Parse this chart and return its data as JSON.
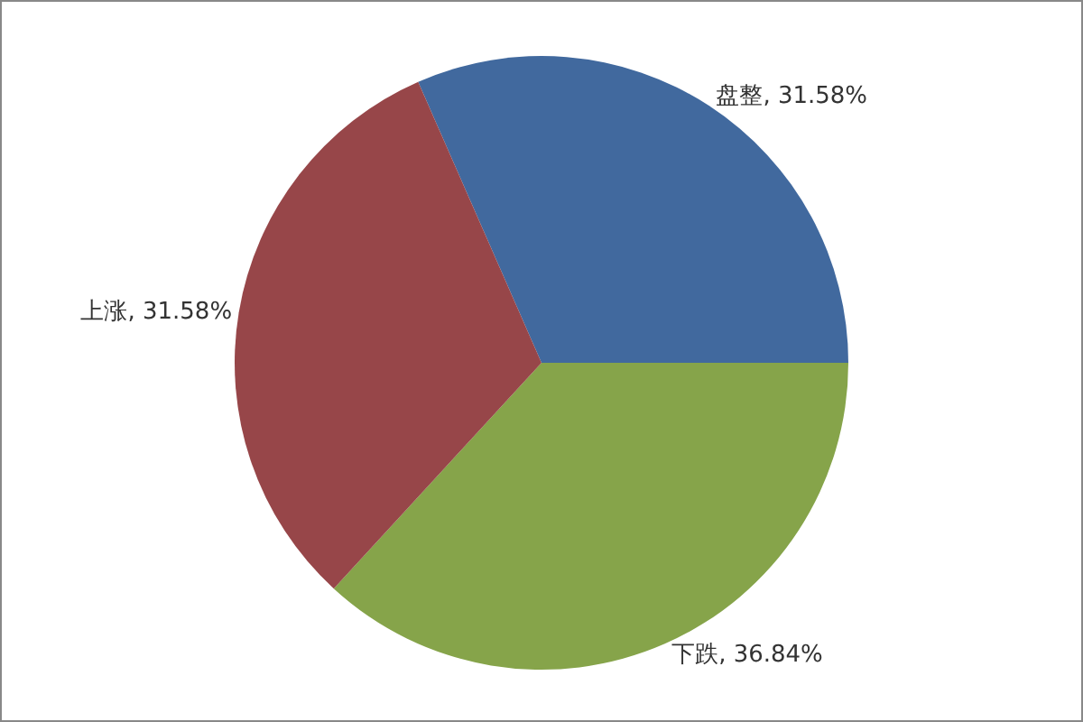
{
  "chart_data": {
    "type": "pie",
    "categories": [
      "盘整",
      "下跌",
      "上涨"
    ],
    "values": [
      31.58,
      36.84,
      31.58
    ],
    "value_labels": [
      "31.58%",
      "36.84%",
      "31.58%"
    ],
    "colors": [
      "#41699e",
      "#86a44a",
      "#974649"
    ],
    "legend": false
  }
}
